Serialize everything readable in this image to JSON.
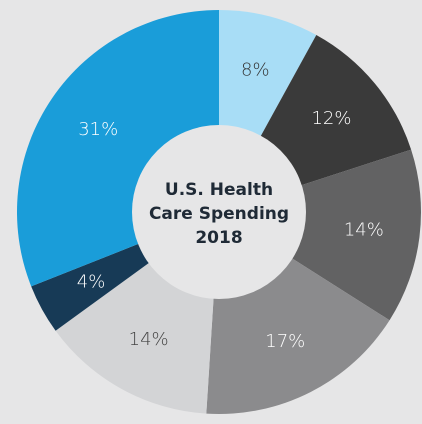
{
  "chart_data": {
    "type": "donut",
    "title": [
      "U.S. Health",
      "Care Spending",
      "2018"
    ],
    "values": [
      8,
      12,
      14,
      17,
      14,
      4,
      31
    ],
    "value_labels": [
      "8%",
      "12%",
      "14%",
      "17%",
      "14%",
      "4%",
      "31%"
    ],
    "colors": [
      "#a8ddf6",
      "#3a3a3a",
      "#626263",
      "#8b8b8d",
      "#d3d4d6",
      "#173a56",
      "#1a9dd9"
    ],
    "label_colors": [
      "#333333",
      "#ffffff",
      "#ffffff",
      "#ffffff",
      "#444444",
      "#ffffff",
      "#ffffff"
    ]
  }
}
